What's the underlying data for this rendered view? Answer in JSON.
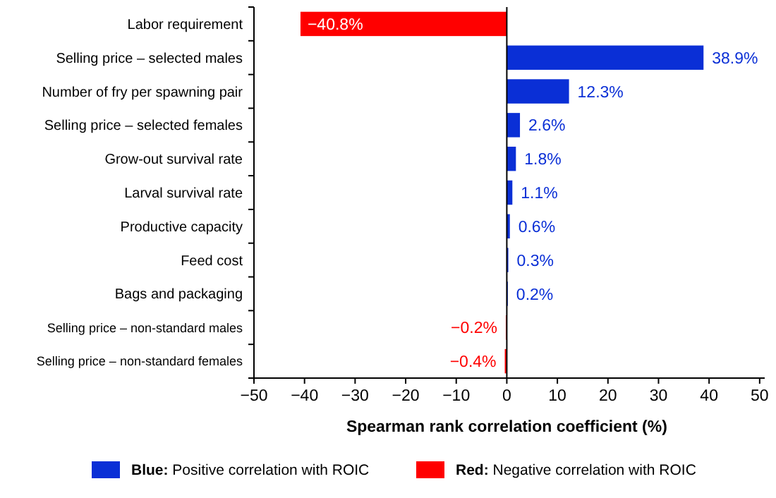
{
  "chart_data": {
    "type": "bar",
    "orientation": "horizontal",
    "stacked": true,
    "xlabel": "Spearman rank correlation coefficient (%)",
    "categories": [
      "Labor requirement",
      "Selling price – selected males",
      "Number of fry per spawning pair",
      "Selling price – selected females",
      "Grow-out survival rate",
      "Larval survival rate",
      "Productive capacity",
      "Feed cost",
      "Bags and packaging",
      "Selling price – non-standard males",
      "Selling price – non-standard females"
    ],
    "series": [
      {
        "name": "Blue: Positive correlation with ROIC",
        "color": "#0a2fd6",
        "values": [
          null,
          38.9,
          12.3,
          2.6,
          1.8,
          1.1,
          0.6,
          0.3,
          0.2,
          null,
          null
        ],
        "value_labels": [
          null,
          "38.9%",
          "12.3%",
          "2.6%",
          "1.8%",
          "1.1%",
          "0.6%",
          "0.3%",
          "0.2%",
          null,
          null
        ]
      },
      {
        "name": "Red: Negative correlation with ROIC",
        "color": "#ff0000",
        "values": [
          -40.8,
          null,
          null,
          null,
          null,
          null,
          null,
          null,
          null,
          -0.2,
          -0.4
        ],
        "value_labels": [
          "−40.8%",
          null,
          null,
          null,
          null,
          null,
          null,
          null,
          null,
          "−0.2%",
          "−0.4%"
        ]
      }
    ],
    "xlim": [
      -50,
      51
    ],
    "xticks": [
      {
        "value": -50,
        "label": "−50"
      },
      {
        "value": -40,
        "label": "−40"
      },
      {
        "value": -30,
        "label": "−30"
      },
      {
        "value": -20,
        "label": "−20"
      },
      {
        "value": -10,
        "label": "−10"
      },
      0,
      10,
      20,
      30,
      40,
      50
    ],
    "ref_lines": [
      {
        "axis": "x",
        "value": 0,
        "color": "#000000"
      }
    ],
    "grid": false,
    "legend": "bottom"
  }
}
